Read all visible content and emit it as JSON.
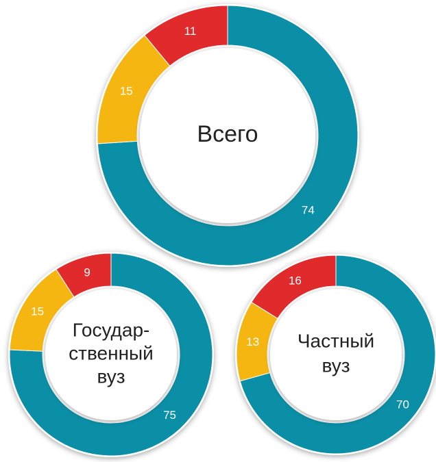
{
  "chart_data": [
    {
      "type": "pie",
      "label_lines": [
        "Всего"
      ],
      "values": [
        74,
        15,
        11
      ],
      "colors": [
        "#0b8fa6",
        "#f6b612",
        "#e02a2b"
      ]
    },
    {
      "type": "pie",
      "label_lines": [
        "Государ-",
        "ственный",
        "вуз"
      ],
      "values": [
        75,
        15,
        9
      ],
      "colors": [
        "#0b8fa6",
        "#f6b612",
        "#e02a2b"
      ]
    },
    {
      "type": "pie",
      "label_lines": [
        "Частный",
        "вуз"
      ],
      "values": [
        70,
        13,
        16
      ],
      "colors": [
        "#0b8fa6",
        "#f6b612",
        "#e02a2b"
      ]
    }
  ]
}
